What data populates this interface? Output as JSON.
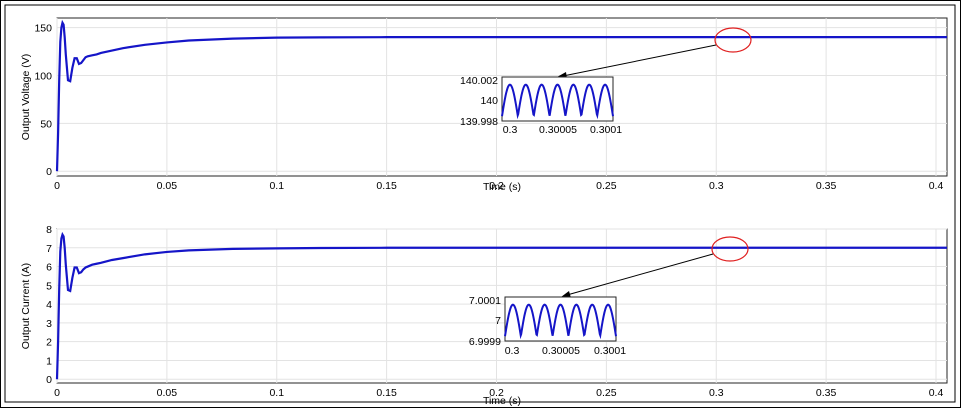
{
  "chart_data": [
    {
      "type": "line",
      "title": "",
      "xlabel": "Time (s)",
      "ylabel": "Output Voltage (V)",
      "xlim": [
        0,
        0.405
      ],
      "ylim": [
        -5,
        160
      ],
      "xticks": [
        0,
        0.05,
        0.1,
        0.15,
        0.2,
        0.25,
        0.3,
        0.35,
        0.4
      ],
      "xtick_labels": [
        "0",
        "0.05",
        "0.1",
        "0.15",
        "0.2",
        "0.25",
        "0.3",
        "0.35",
        "0.4"
      ],
      "yticks": [
        0,
        50,
        100,
        150
      ],
      "ytick_labels": [
        "0",
        "50",
        "100",
        "150"
      ],
      "grid": true,
      "line_color": "#1515c8",
      "series": [
        {
          "x": [
            0,
            0.0005,
            0.001,
            0.0015,
            0.002,
            0.0025,
            0.003,
            0.0035,
            0.004,
            0.005,
            0.006,
            0.007,
            0.008,
            0.009,
            0.01,
            0.011,
            0.012,
            0.013,
            0.014,
            0.016,
            0.018,
            0.02,
            0.025,
            0.03,
            0.04,
            0.05,
            0.06,
            0.08,
            0.1,
            0.12,
            0.15,
            0.2,
            0.25,
            0.3,
            0.35,
            0.405
          ],
          "y": [
            0,
            40,
            95,
            135,
            150,
            155,
            153,
            140,
            122,
            95,
            94,
            108,
            118,
            118,
            112,
            113,
            116,
            119,
            120,
            121,
            122,
            123.5,
            126,
            128.5,
            132,
            134.5,
            136.5,
            138.5,
            139.5,
            139.8,
            140,
            140,
            140,
            140,
            140,
            140
          ]
        }
      ],
      "inset": {
        "xlim": [
          0.3,
          0.3001
        ],
        "ylim": [
          139.998,
          140.002
        ],
        "xticks": [
          0.3,
          0.30005,
          0.3001
        ],
        "xtick_labels": [
          "0.3",
          "0.30005",
          "0.3001"
        ],
        "ytick_labels": [
          "140.002",
          "140",
          "139.998"
        ],
        "ripple_center": 140,
        "ripple_amplitude": 0.0013,
        "ripple_humps": 7
      }
    },
    {
      "type": "line",
      "title": "",
      "xlabel": "Time (s)",
      "ylabel": "Output Current (A)",
      "xlim": [
        0,
        0.405
      ],
      "ylim": [
        -0.2,
        8
      ],
      "xticks": [
        0,
        0.05,
        0.1,
        0.15,
        0.2,
        0.25,
        0.3,
        0.35,
        0.4
      ],
      "xtick_labels": [
        "0",
        "0.05",
        "0.1",
        "0.15",
        "0.2",
        "0.25",
        "0.3",
        "0.35",
        "0.4"
      ],
      "yticks": [
        0,
        1,
        2,
        3,
        4,
        5,
        6,
        7,
        8
      ],
      "ytick_labels": [
        "0",
        "1",
        "2",
        "3",
        "4",
        "5",
        "6",
        "7",
        "8"
      ],
      "grid": true,
      "line_color": "#1515c8",
      "series": [
        {
          "x": [
            0,
            0.0005,
            0.001,
            0.0015,
            0.002,
            0.0025,
            0.003,
            0.0035,
            0.004,
            0.005,
            0.006,
            0.007,
            0.008,
            0.009,
            0.01,
            0.011,
            0.012,
            0.013,
            0.014,
            0.016,
            0.018,
            0.02,
            0.025,
            0.03,
            0.04,
            0.05,
            0.06,
            0.08,
            0.1,
            0.12,
            0.15,
            0.2,
            0.25,
            0.3,
            0.35,
            0.405
          ],
          "y": [
            0,
            2.0,
            4.8,
            6.8,
            7.5,
            7.7,
            7.6,
            7.0,
            6.1,
            4.75,
            4.7,
            5.4,
            5.95,
            5.95,
            5.65,
            5.7,
            5.85,
            5.95,
            6.0,
            6.1,
            6.15,
            6.2,
            6.35,
            6.45,
            6.65,
            6.78,
            6.86,
            6.94,
            6.97,
            6.99,
            7.0,
            7.0,
            7.0,
            7.0,
            7.0,
            7.0
          ]
        }
      ],
      "inset": {
        "xlim": [
          0.3,
          0.3001
        ],
        "ylim": [
          6.9999,
          7.0001
        ],
        "xticks": [
          0.3,
          0.30005,
          0.3001
        ],
        "xtick_labels": [
          "0.3",
          "0.30005",
          "0.3001"
        ],
        "ytick_labels": [
          "7.0001",
          "7",
          "6.9999"
        ],
        "ripple_center": 7,
        "ripple_amplitude": 6.5e-05,
        "ripple_humps": 7
      }
    }
  ]
}
